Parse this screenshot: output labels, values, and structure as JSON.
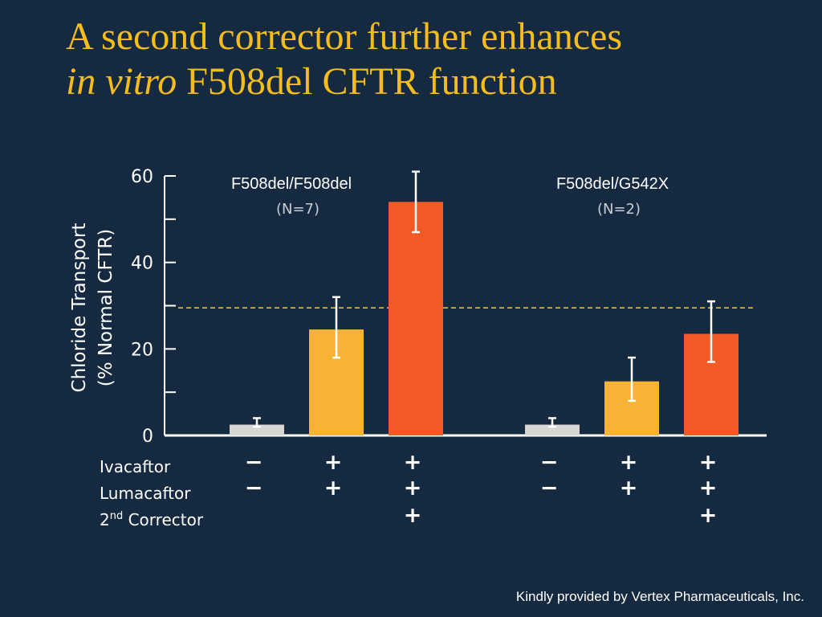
{
  "slide": {
    "title_line1": "A second corrector further enhances",
    "title_italic": "in vitro",
    "title_rest": " F508del CFTR function",
    "credit": "Kindly provided by Vertex Pharmaceuticals, Inc."
  },
  "chart_data": {
    "type": "bar",
    "title": "",
    "ylabel_line1": "Chloride Transport",
    "ylabel_line2": "(% Normal CFTR)",
    "ylim": [
      0,
      60
    ],
    "yticks": [
      0,
      20,
      40,
      60
    ],
    "grid": false,
    "reference_line": {
      "y": 29.5,
      "color": "#f5bd1b",
      "style": "dashed"
    },
    "groups": [
      {
        "name": "F508del/F508del",
        "n_label": "(N=7)",
        "bars": [
          {
            "value": 2.5,
            "err_low": 2.0,
            "err_high": 4.0,
            "color": "#d6d6d6",
            "ivacaftor": "−",
            "lumacaftor": "−",
            "corrector2": ""
          },
          {
            "value": 24.5,
            "err_low": 18.0,
            "err_high": 32.0,
            "color": "#f8b334",
            "ivacaftor": "+",
            "lumacaftor": "+",
            "corrector2": ""
          },
          {
            "value": 54.0,
            "err_low": 47.0,
            "err_high": 61.0,
            "color": "#f15a24",
            "ivacaftor": "+",
            "lumacaftor": "+",
            "corrector2": "+"
          }
        ]
      },
      {
        "name": "F508del/G542X",
        "n_label": "(N=2)",
        "bars": [
          {
            "value": 2.5,
            "err_low": 2.0,
            "err_high": 4.0,
            "color": "#d6d6d6",
            "ivacaftor": "−",
            "lumacaftor": "−",
            "corrector2": ""
          },
          {
            "value": 12.5,
            "err_low": 8.0,
            "err_high": 18.0,
            "color": "#f8b334",
            "ivacaftor": "+",
            "lumacaftor": "+",
            "corrector2": ""
          },
          {
            "value": 23.5,
            "err_low": 17.0,
            "err_high": 31.0,
            "color": "#f15a24",
            "ivacaftor": "+",
            "lumacaftor": "+",
            "corrector2": "+"
          }
        ]
      }
    ],
    "treatment_rows": {
      "ivacaftor": "Ivacaftor",
      "lumacaftor": "Lumacaftor",
      "corrector2_prefix": "2",
      "corrector2_sup": "nd",
      "corrector2_suffix": " Corrector"
    }
  }
}
